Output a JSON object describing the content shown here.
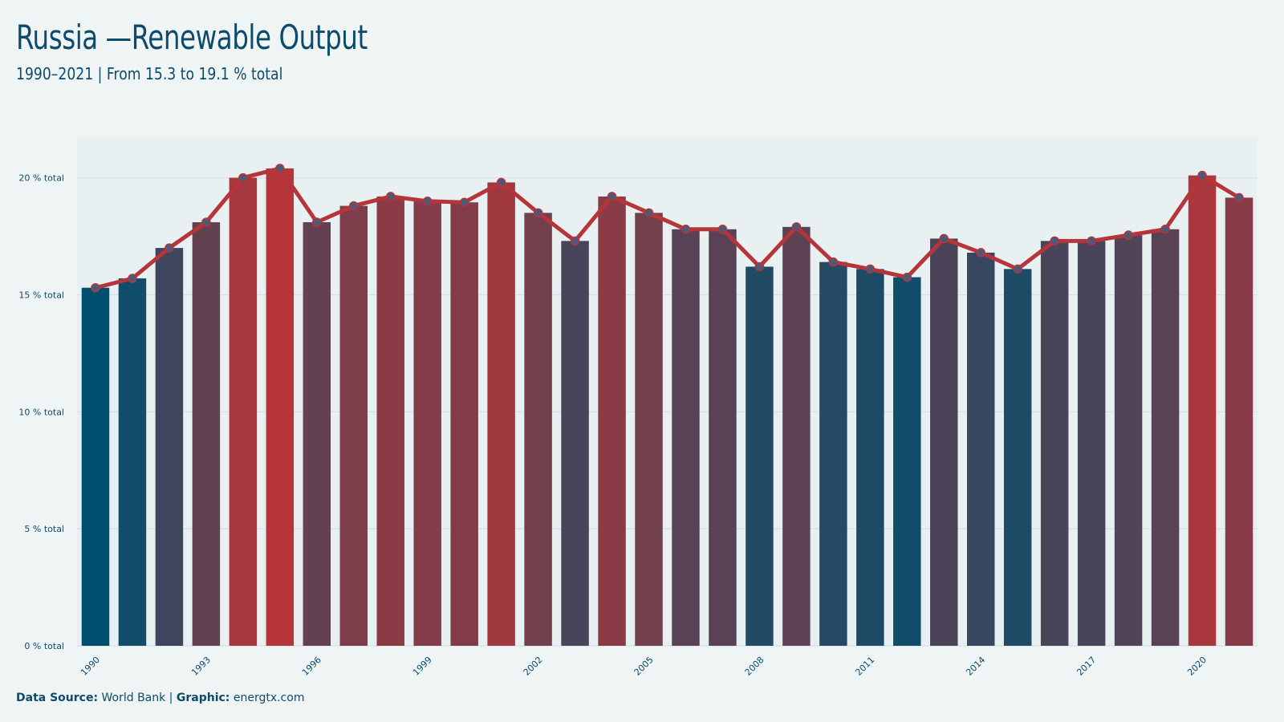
{
  "header": {
    "title": "Russia —Renewable Output",
    "subtitle": "1990–2021 | From 15.3 to 19.1 % total"
  },
  "footer": {
    "source_label": "Data Source:",
    "source_value": " World Bank | ",
    "graphic_label": "Graphic:",
    "graphic_value": " energtx.com"
  },
  "colors": {
    "low": "#014f6e",
    "high": "#b5353a",
    "line": "#b5353a",
    "marker": "#4a5a78",
    "text": "#0e4a6b",
    "grid": "#d6e0e2"
  },
  "chart_data": {
    "type": "bar",
    "x": [
      1990,
      1991,
      1992,
      1993,
      1994,
      1995,
      1996,
      1997,
      1998,
      1999,
      2000,
      2001,
      2002,
      2003,
      2004,
      2005,
      2006,
      2007,
      2008,
      2009,
      2010,
      2011,
      2012,
      2013,
      2014,
      2015,
      2016,
      2017,
      2018,
      2019,
      2020,
      2021
    ],
    "values": [
      15.3,
      15.7,
      17.0,
      18.1,
      20.0,
      20.4,
      18.1,
      18.8,
      19.2,
      19.0,
      18.95,
      19.8,
      18.5,
      17.3,
      19.2,
      18.5,
      17.8,
      17.8,
      16.2,
      17.9,
      16.4,
      16.1,
      15.75,
      17.4,
      16.8,
      16.1,
      17.3,
      17.3,
      17.55,
      17.8,
      20.1,
      19.15
    ],
    "series": [
      {
        "type": "bar",
        "values": [
          15.3,
          15.7,
          17.0,
          18.1,
          20.0,
          20.4,
          18.1,
          18.8,
          19.2,
          19.0,
          18.95,
          19.8,
          18.5,
          17.3,
          19.2,
          18.5,
          17.8,
          17.8,
          16.2,
          17.9,
          16.4,
          16.1,
          15.75,
          17.4,
          16.8,
          16.1,
          17.3,
          17.3,
          17.55,
          17.8,
          20.1,
          19.15
        ]
      },
      {
        "type": "line",
        "values": [
          15.3,
          15.7,
          17.0,
          18.1,
          20.0,
          20.4,
          18.1,
          18.8,
          19.2,
          19.0,
          18.95,
          19.8,
          18.5,
          17.3,
          19.2,
          18.5,
          17.8,
          17.8,
          16.2,
          17.9,
          16.4,
          16.1,
          15.75,
          17.4,
          16.8,
          16.1,
          17.3,
          17.3,
          17.55,
          17.8,
          20.1,
          19.15
        ]
      }
    ],
    "xticks": [
      "1990",
      "1993",
      "1996",
      "1999",
      "2002",
      "2005",
      "2008",
      "2011",
      "2014",
      "2017",
      "2020"
    ],
    "yticks": [
      "0 % total",
      "5 % total",
      "10 % total",
      "15 % total",
      "20 % total"
    ],
    "ytick_values": [
      0,
      5,
      10,
      15,
      20
    ],
    "ylim": [
      0,
      21.7
    ],
    "xlabel": "",
    "ylabel": "",
    "grid": true
  }
}
